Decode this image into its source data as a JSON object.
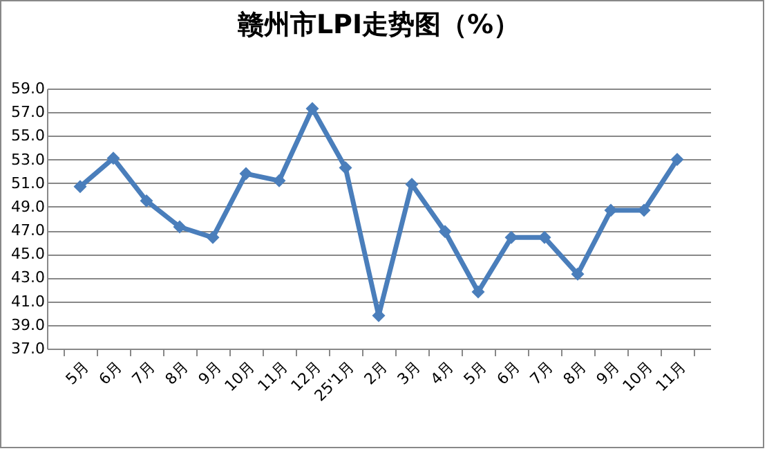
{
  "chart_data": {
    "type": "line",
    "title": "赣州市LPI走势图（%）",
    "categories": [
      "5月",
      "6月",
      "7月",
      "8月",
      "9月",
      "10月",
      "11月",
      "12月",
      "25'1月",
      "2月",
      "3月",
      "4月",
      "5月",
      "6月",
      "7月",
      "8月",
      "9月",
      "10月",
      "11月"
    ],
    "series": [
      {
        "color": "#4a7ebb",
        "values": [
          50.7,
          53.1,
          49.5,
          47.3,
          46.4,
          51.8,
          51.2,
          57.3,
          52.3,
          39.8,
          50.9,
          46.9,
          41.8,
          46.4,
          46.4,
          43.3,
          48.7,
          48.7,
          53.0
        ]
      }
    ],
    "ylim": [
      37,
      59
    ],
    "yticks": [
      {
        "value": 37,
        "label": "37.0"
      },
      {
        "value": 39,
        "label": "39.0"
      },
      {
        "value": 41,
        "label": "41.0"
      },
      {
        "value": 43,
        "label": "43.0"
      },
      {
        "value": 45,
        "label": "45.0"
      },
      {
        "value": 47,
        "label": "47.0"
      },
      {
        "value": 49,
        "label": "49.0"
      },
      {
        "value": 51,
        "label": "51.0"
      },
      {
        "value": 53,
        "label": "53.0"
      },
      {
        "value": 55,
        "label": "55.0"
      },
      {
        "value": 57,
        "label": "57.0"
      },
      {
        "value": 59,
        "label": "59.0"
      }
    ],
    "grid": "y",
    "marker": "diamond",
    "line_style": "solid"
  }
}
